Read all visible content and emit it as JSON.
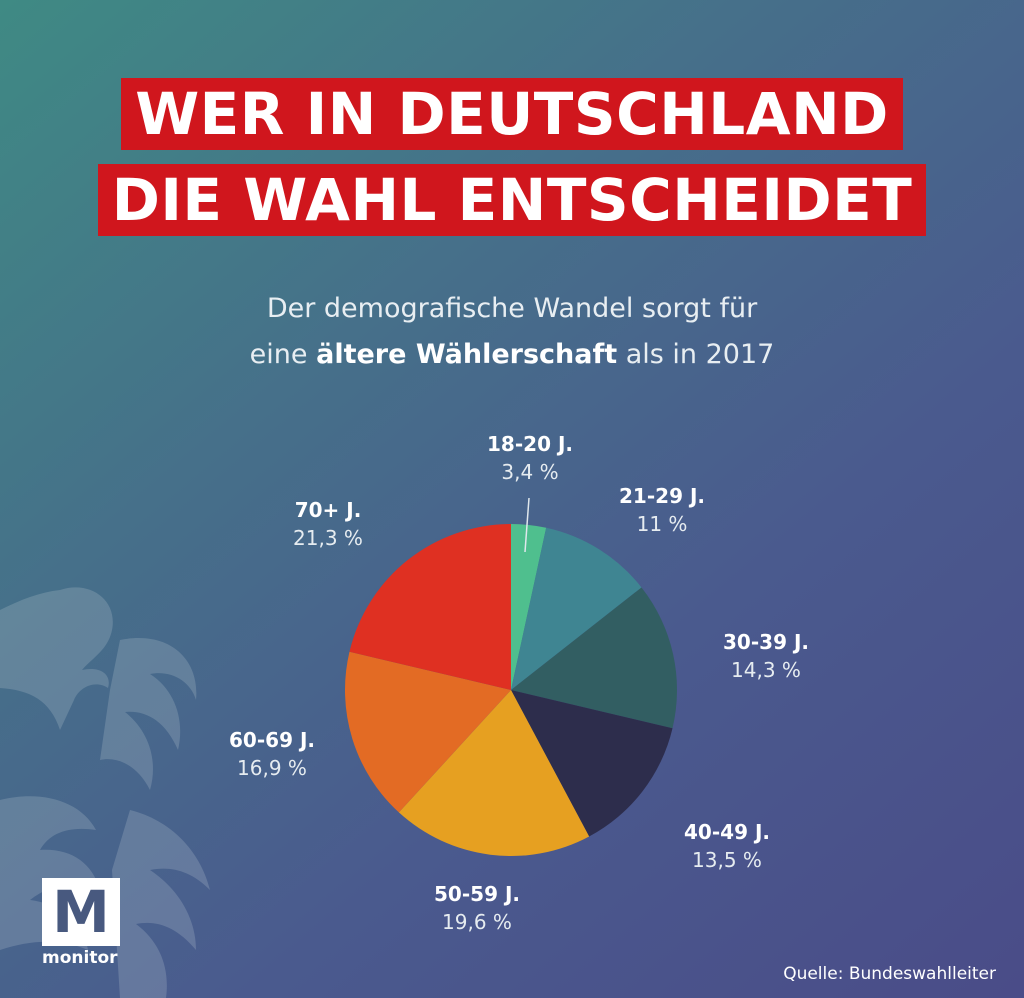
{
  "headline": {
    "line1": "WER IN DEUTSCHLAND",
    "line2": "DIE WAHL ENTSCHEIDET"
  },
  "subtitle": {
    "line1": "Der demografische Wandel sorgt für",
    "line2_pre": "eine",
    "line2_bold": "ältere Wählerschaft",
    "line2_post": "als in 2017"
  },
  "chart_data": {
    "type": "pie",
    "title": "Der demografische Wandel sorgt für eine ältere Wählerschaft als in 2017",
    "slices": [
      {
        "label": "18-20 J.",
        "value": 3.4,
        "value_label": "3,4 %",
        "color": "#4fbf8e"
      },
      {
        "label": "21-29 J.",
        "value": 11,
        "value_label": "11 %",
        "color": "#3f8592"
      },
      {
        "label": "30-39 J.",
        "value": 14.3,
        "value_label": "14,3 %",
        "color": "#325e62"
      },
      {
        "label": "40-49 J.",
        "value": 13.5,
        "value_label": "13,5 %",
        "color": "#2d2d4c"
      },
      {
        "label": "50-59 J.",
        "value": 19.6,
        "value_label": "19,6 %",
        "color": "#e6a021"
      },
      {
        "label": "60-69 J.",
        "value": 16.9,
        "value_label": "16,9 %",
        "color": "#e36b24"
      },
      {
        "label": "70+ J.",
        "value": 21.3,
        "value_label": "21,3 %",
        "color": "#df3022"
      }
    ]
  },
  "logo": {
    "letter": "M",
    "name": "monitor"
  },
  "source": "Quelle: Bundeswahlleiter",
  "colors": {
    "headline_bg": "#d0161d"
  }
}
